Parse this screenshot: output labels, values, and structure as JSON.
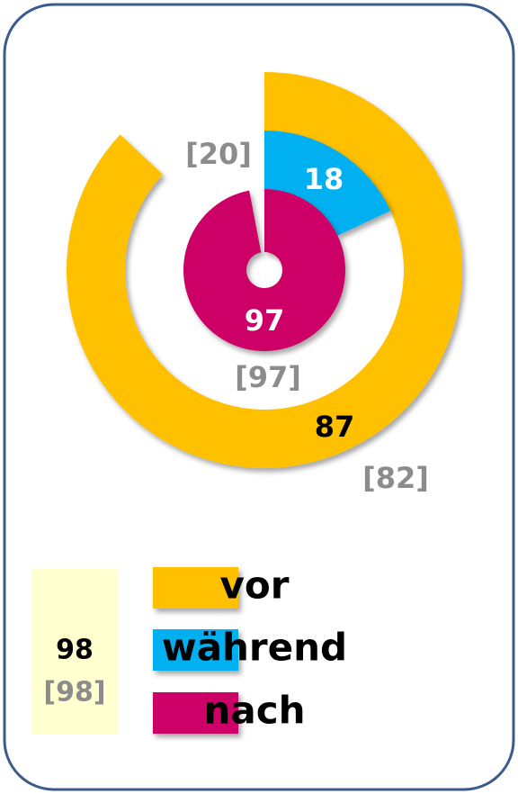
{
  "chart_data": {
    "type": "radial-bar",
    "series": [
      {
        "name": "vor",
        "color": "#ffc000",
        "value": 87,
        "previous": {
          "value": 82,
          "label": "[82]"
        }
      },
      {
        "name": "während",
        "color": "#00b0f0",
        "value": 18,
        "previous": {
          "value": 20,
          "label": "[20]"
        }
      },
      {
        "name": "nach",
        "color": "#cc0066",
        "value": 97,
        "previous": {
          "value": 97,
          "label": "[97]"
        }
      }
    ],
    "ylim": [
      0,
      100
    ],
    "summary": {
      "value": 98,
      "previous": {
        "value": 98,
        "label": "[98]"
      }
    }
  }
}
